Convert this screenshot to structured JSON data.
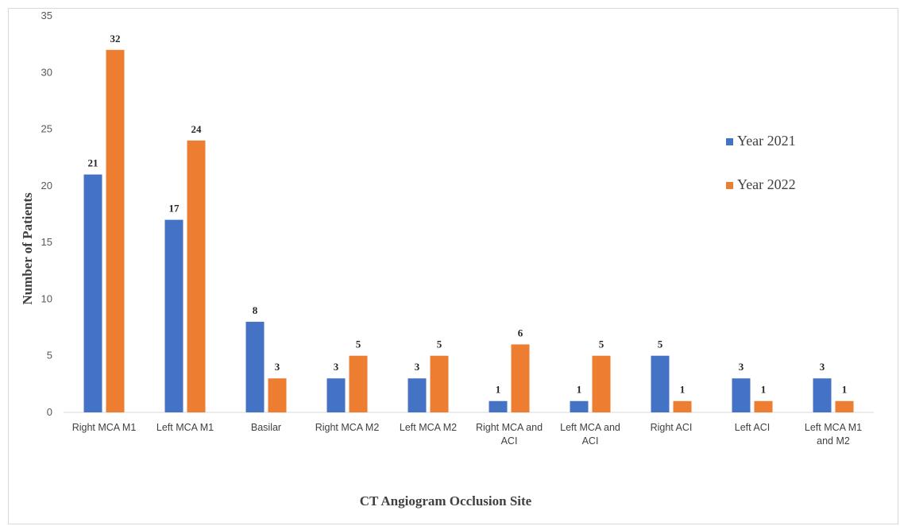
{
  "chart_data": {
    "type": "bar",
    "title": "",
    "xlabel": "CT Angiogram Occlusion Site",
    "ylabel": "Number of Patients",
    "ylim": [
      0,
      35
    ],
    "yticks": [
      0,
      5,
      10,
      15,
      20,
      25,
      30,
      35
    ],
    "grid": false,
    "legend_position": "right",
    "categories": [
      [
        "Right MCA M1"
      ],
      [
        "Left MCA M1"
      ],
      [
        "Basilar"
      ],
      [
        "Right MCA M2"
      ],
      [
        "Left MCA M2"
      ],
      [
        "Right MCA and",
        "ACI"
      ],
      [
        "Left MCA and",
        "ACI"
      ],
      [
        "Right ACI"
      ],
      [
        "Left ACI"
      ],
      [
        "Left MCA M1",
        "and M2"
      ]
    ],
    "series": [
      {
        "name": "Year 2021",
        "color": "#4472C4",
        "values": [
          21,
          17,
          8,
          3,
          3,
          1,
          1,
          5,
          3,
          3
        ]
      },
      {
        "name": "Year 2022",
        "color": "#ED7D31",
        "values": [
          32,
          24,
          3,
          5,
          5,
          6,
          5,
          1,
          1,
          1
        ]
      }
    ]
  }
}
